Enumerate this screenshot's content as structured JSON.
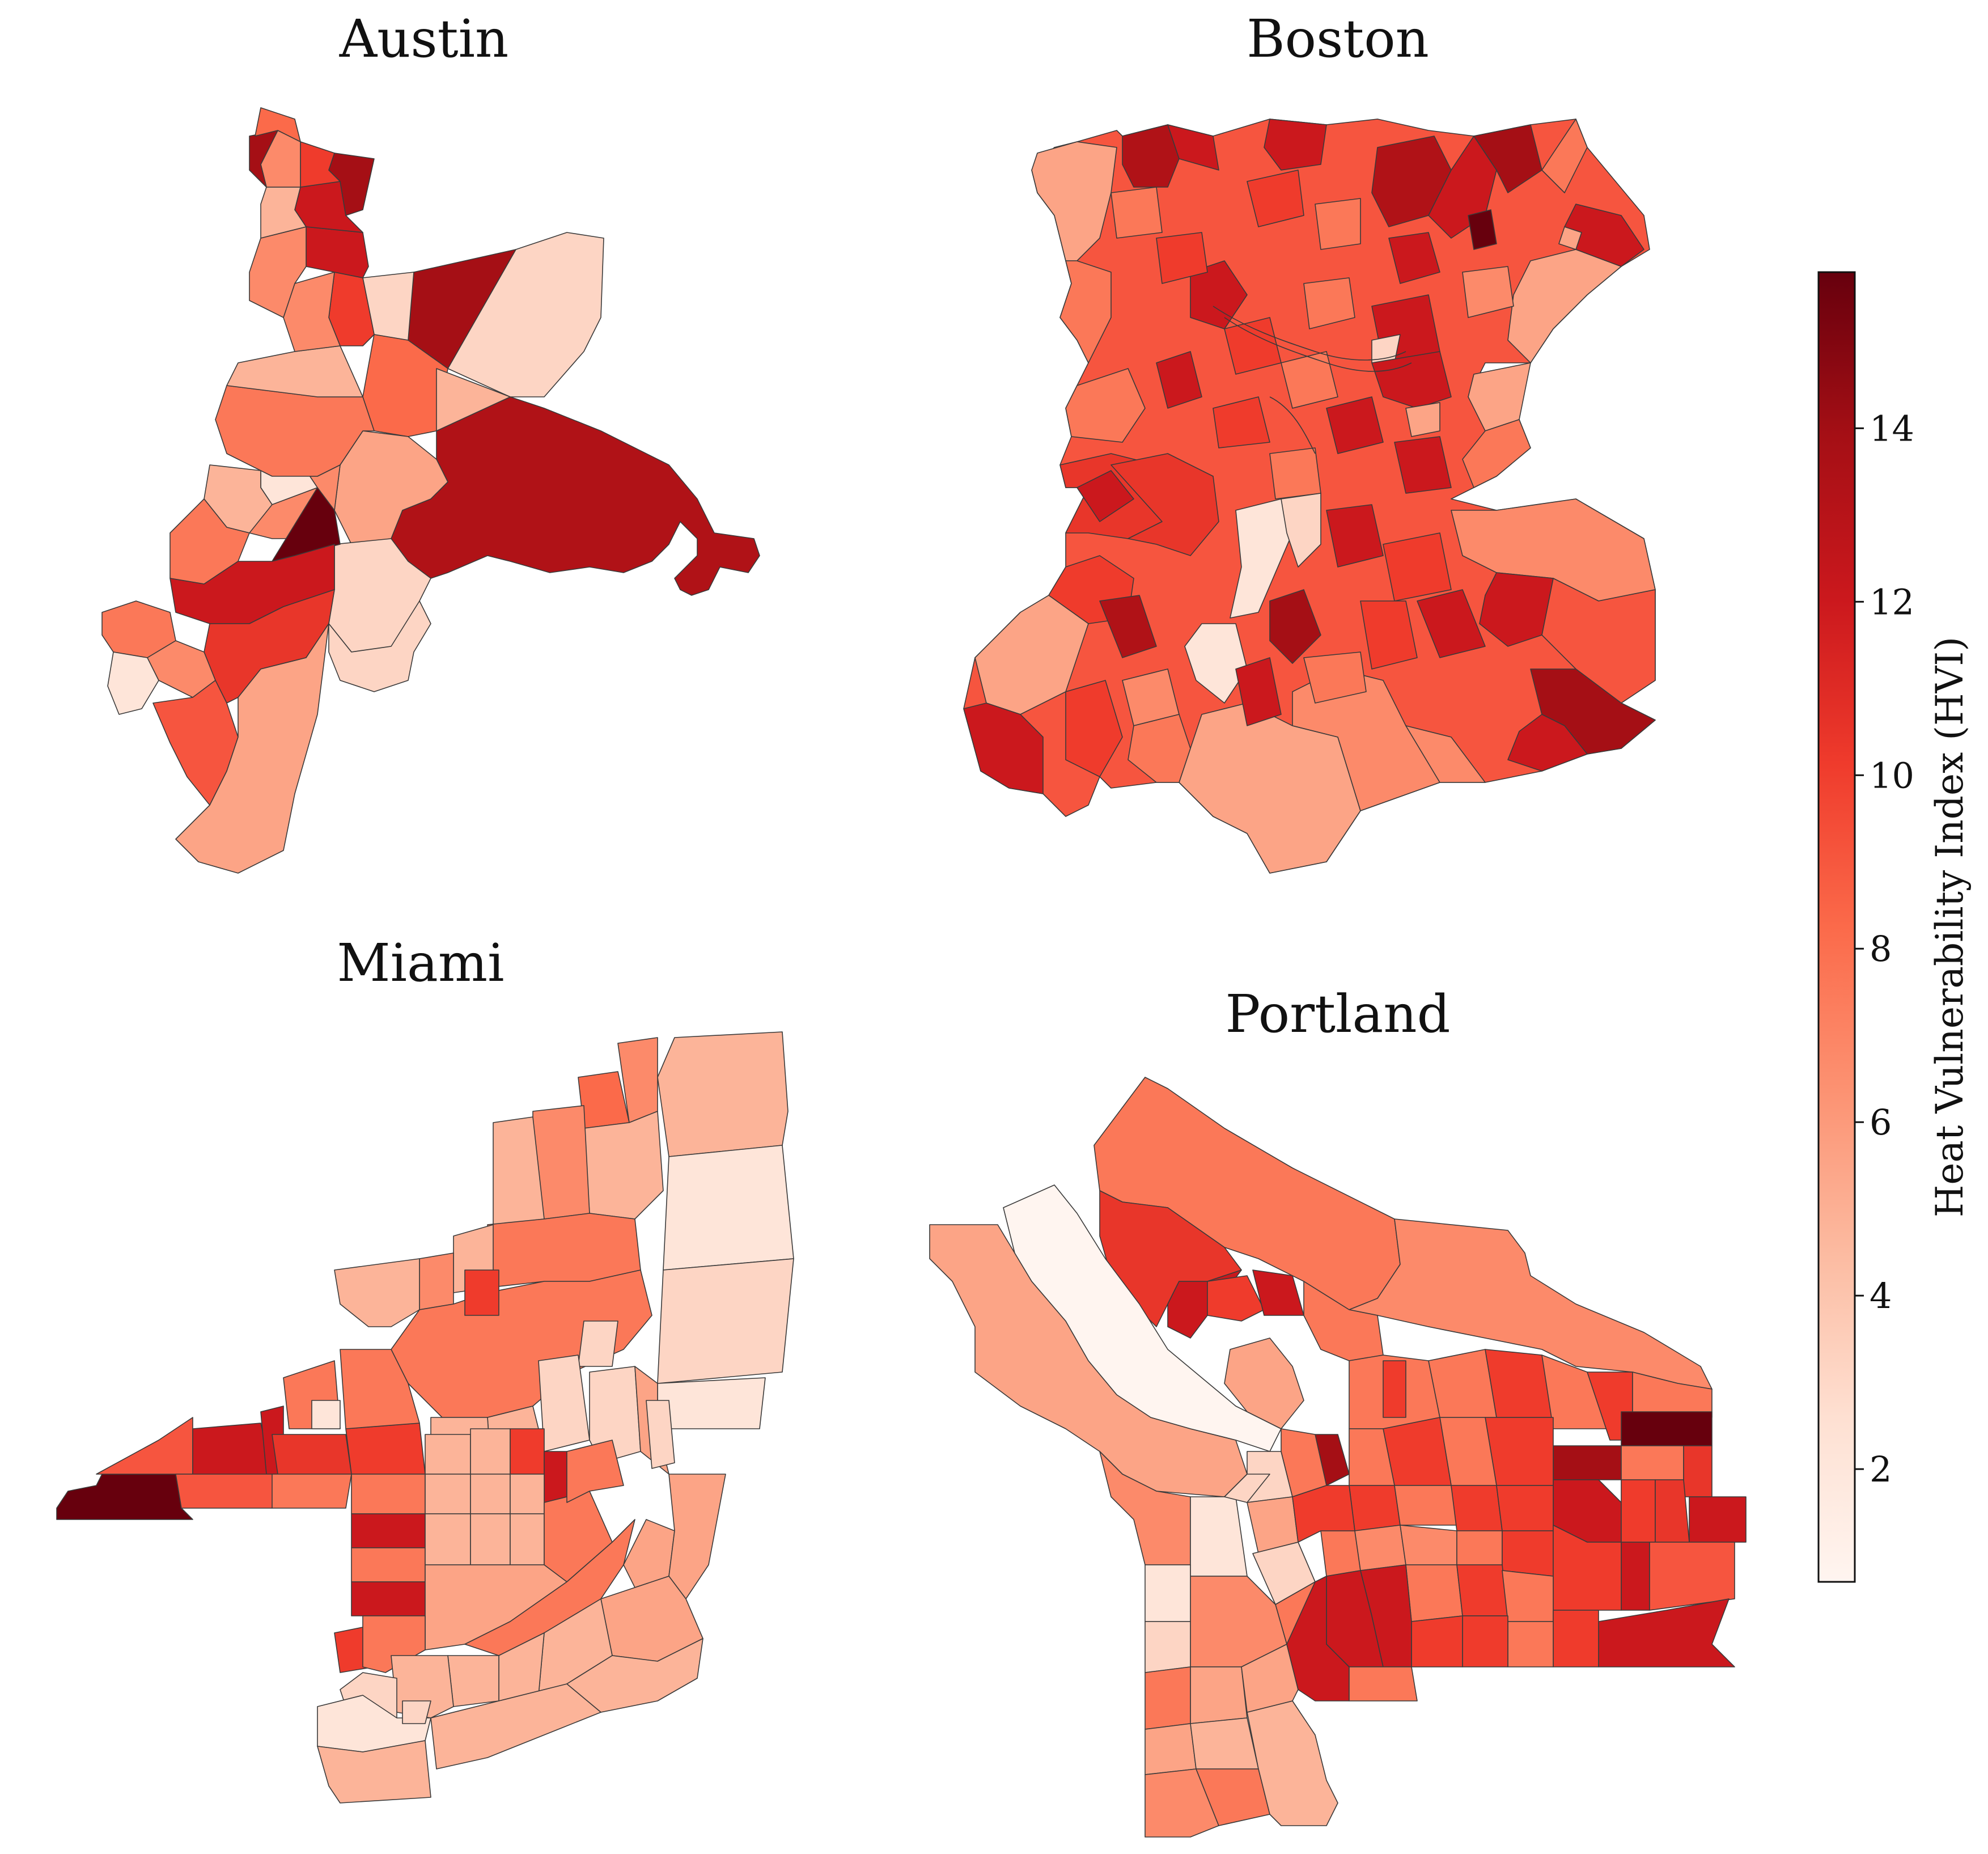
{
  "maps": [
    {
      "id": "austin",
      "title": "Austin"
    },
    {
      "id": "boston",
      "title": "Boston"
    },
    {
      "id": "miami",
      "title": "Miami"
    },
    {
      "id": "portland",
      "title": "Portland"
    }
  ],
  "colorbar": {
    "label": "Heat Vulnerability Index (HVI)",
    "min": 0.7,
    "max": 15.8,
    "ticks": [
      "2",
      "4",
      "6",
      "8",
      "10",
      "12",
      "14"
    ],
    "colors": [
      "#fff5f0",
      "#fee0d2",
      "#fcbba1",
      "#fc9272",
      "#fb6a4a",
      "#ef3b2c",
      "#cb181d",
      "#a50f15",
      "#67000d"
    ]
  }
}
